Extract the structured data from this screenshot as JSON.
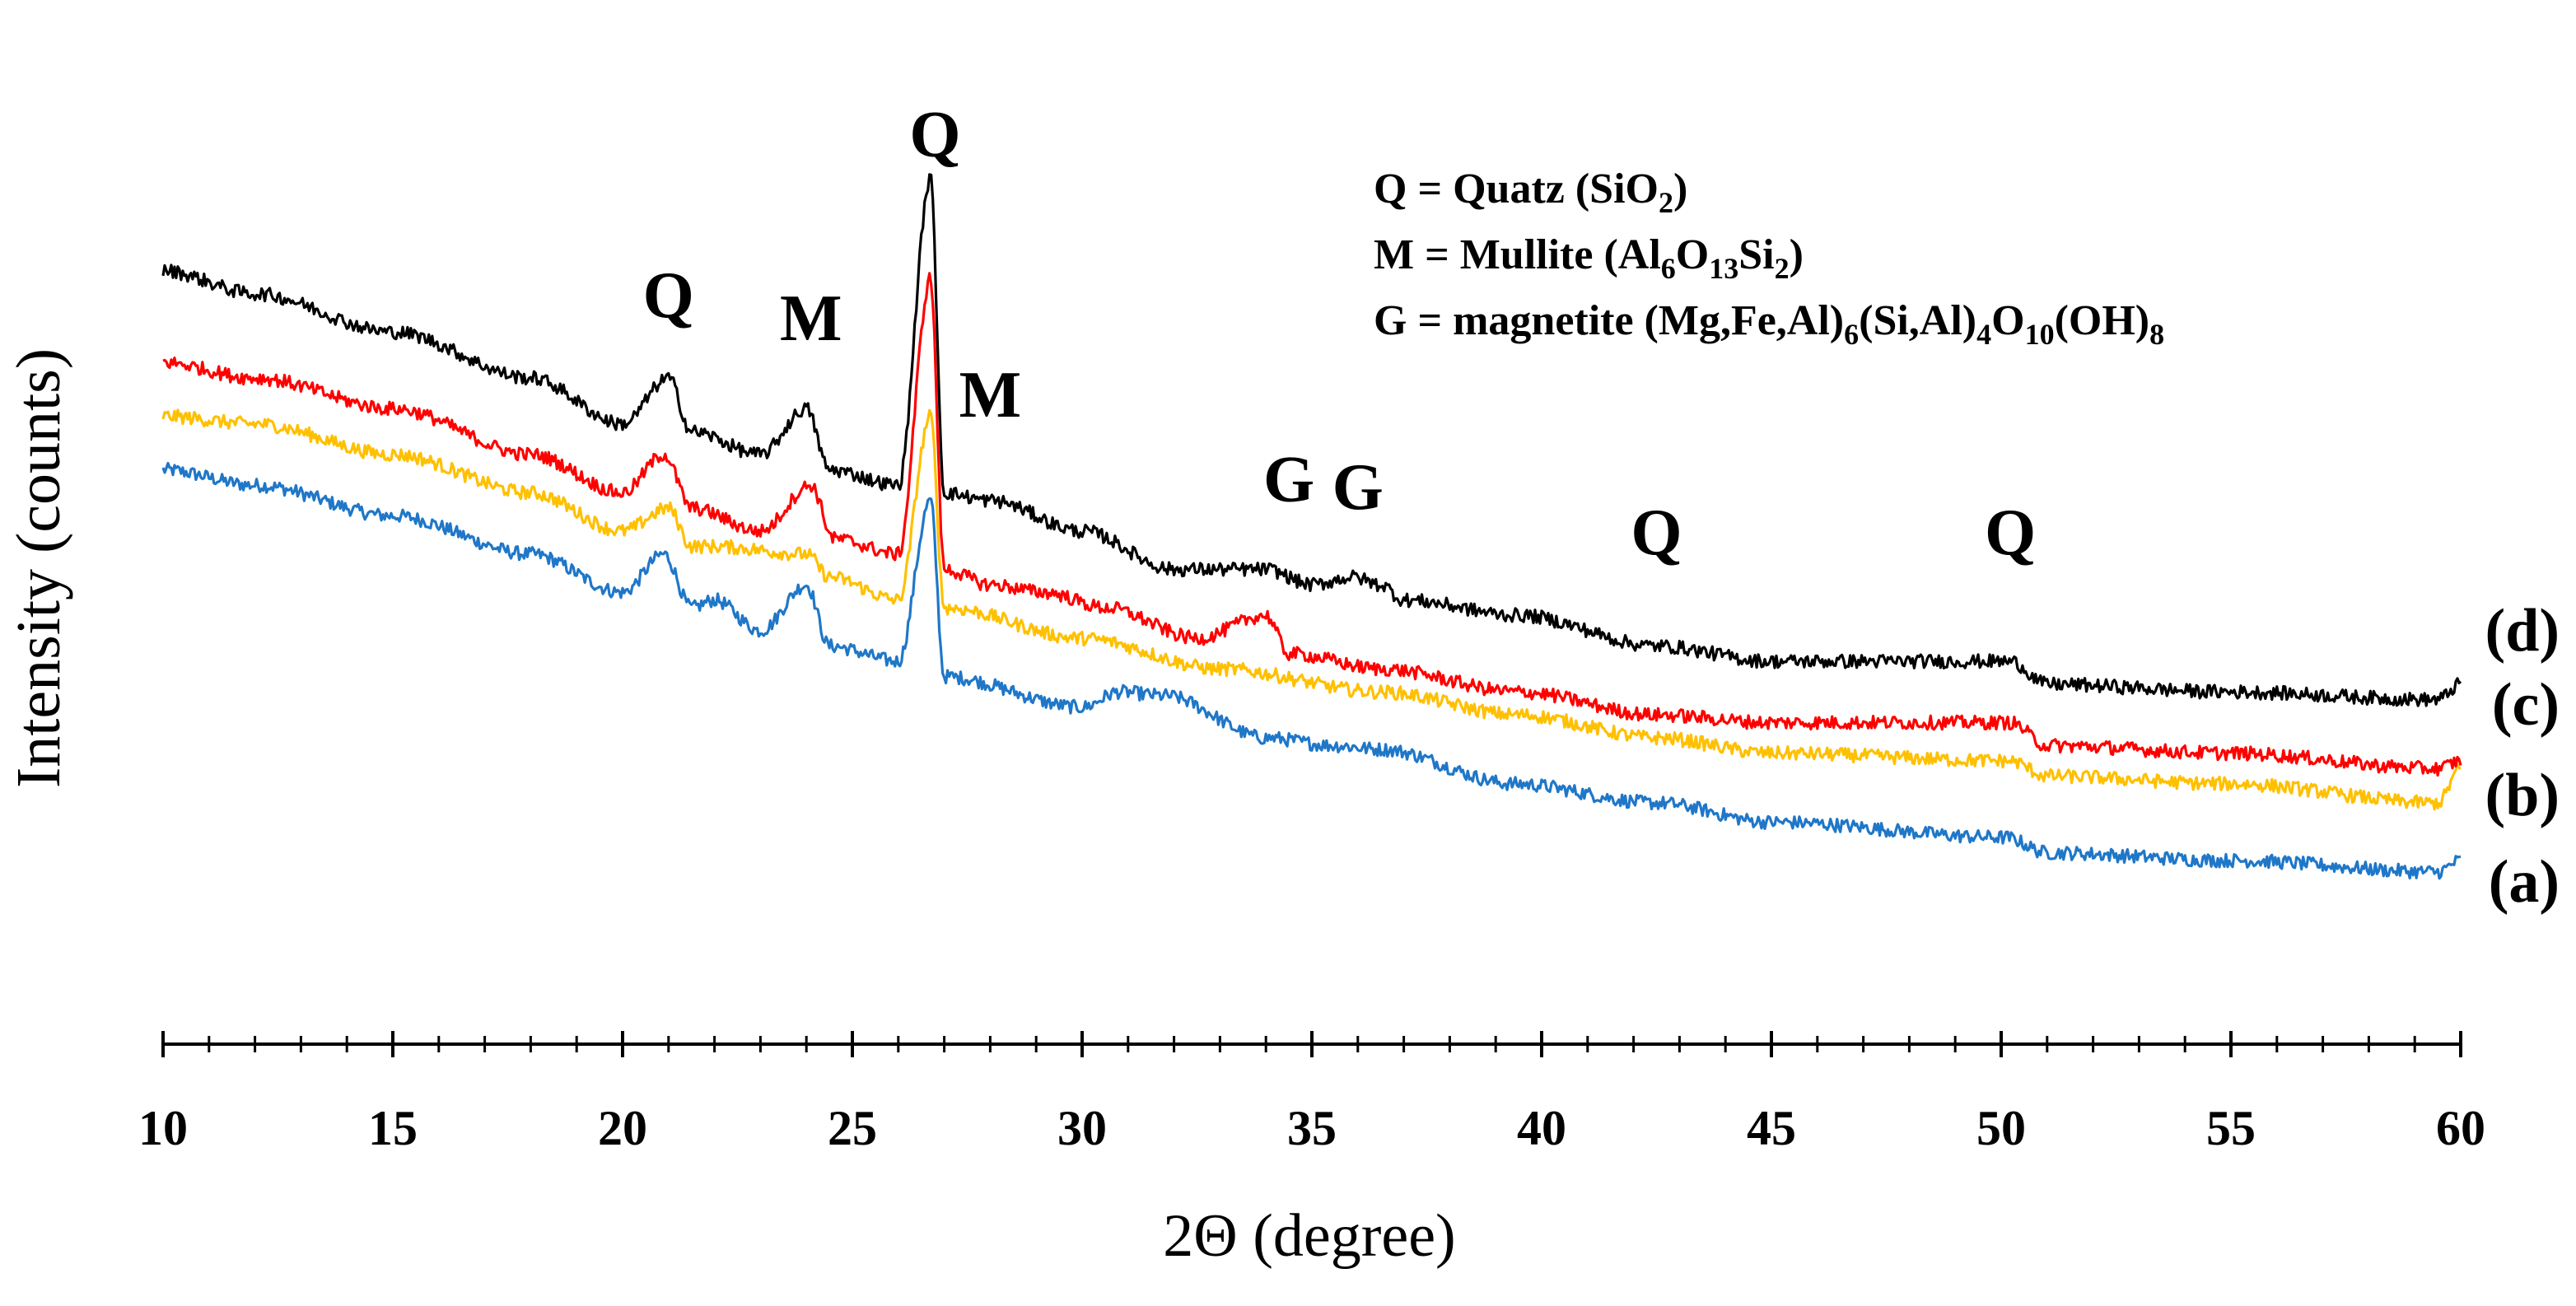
{
  "chart_data": {
    "type": "line",
    "title": "",
    "xlabel": "2Θ (degree)",
    "ylabel": "Intensity  (counts)",
    "xlim": [
      10,
      60
    ],
    "ylim": [
      0,
      1
    ],
    "x_ticks": [
      10,
      15,
      20,
      25,
      30,
      35,
      40,
      45,
      50,
      55,
      60
    ],
    "x_tick_labels": [
      "10",
      "15",
      "20",
      "25",
      "30",
      "35",
      "40",
      "45",
      "50",
      "55",
      "60"
    ],
    "grid": false,
    "y_axis_shown": false,
    "series": [
      {
        "name": "(a)",
        "color": "#1f77c8",
        "points": [
          [
            10,
            0.58
          ],
          [
            12,
            0.56
          ],
          [
            15,
            0.52
          ],
          [
            18,
            0.47
          ],
          [
            20,
            0.42
          ],
          [
            20.9,
            0.47
          ],
          [
            21.5,
            0.4
          ],
          [
            22,
            0.41
          ],
          [
            23,
            0.37
          ],
          [
            24,
            0.43
          ],
          [
            24.5,
            0.35
          ],
          [
            26,
            0.33
          ],
          [
            26.7,
            0.54
          ],
          [
            27,
            0.31
          ],
          [
            30,
            0.27
          ],
          [
            30.8,
            0.29
          ],
          [
            31.8,
            0.285
          ],
          [
            34,
            0.23
          ],
          [
            35.5,
            0.22
          ],
          [
            36.5,
            0.215
          ],
          [
            39.4,
            0.17
          ],
          [
            42.5,
            0.145
          ],
          [
            45,
            0.12
          ],
          [
            50.1,
            0.1
          ],
          [
            51,
            0.08
          ],
          [
            55,
            0.07
          ],
          [
            59.5,
            0.055
          ],
          [
            60,
            0.07
          ]
        ]
      },
      {
        "name": "(b)",
        "color": "#ffc000",
        "points": [
          [
            10,
            0.65
          ],
          [
            12,
            0.64
          ],
          [
            15,
            0.6
          ],
          [
            18,
            0.55
          ],
          [
            20,
            0.5
          ],
          [
            21,
            0.53
          ],
          [
            21.5,
            0.48
          ],
          [
            22,
            0.48
          ],
          [
            24,
            0.47
          ],
          [
            24.5,
            0.44
          ],
          [
            26,
            0.41
          ],
          [
            26.7,
            0.65
          ],
          [
            27,
            0.4
          ],
          [
            30,
            0.36
          ],
          [
            33,
            0.32
          ],
          [
            36.5,
            0.29
          ],
          [
            39.5,
            0.26
          ],
          [
            42.5,
            0.23
          ],
          [
            45,
            0.21
          ],
          [
            50.2,
            0.2
          ],
          [
            51,
            0.18
          ],
          [
            55,
            0.17
          ],
          [
            59.5,
            0.145
          ],
          [
            60,
            0.19
          ]
        ]
      },
      {
        "name": "(c)",
        "color": "#ff0000",
        "points": [
          [
            10,
            0.72
          ],
          [
            12,
            0.7
          ],
          [
            15,
            0.66
          ],
          [
            18,
            0.6
          ],
          [
            20,
            0.55
          ],
          [
            20.9,
            0.6
          ],
          [
            21.5,
            0.53
          ],
          [
            23,
            0.5
          ],
          [
            24.1,
            0.56
          ],
          [
            24.6,
            0.49
          ],
          [
            26,
            0.47
          ],
          [
            26.7,
            0.83
          ],
          [
            27,
            0.45
          ],
          [
            28,
            0.43
          ],
          [
            29.2,
            0.42
          ],
          [
            30.5,
            0.4
          ],
          [
            32.5,
            0.36
          ],
          [
            34,
            0.39
          ],
          [
            34.5,
            0.34
          ],
          [
            36.5,
            0.32
          ],
          [
            39.5,
            0.29
          ],
          [
            42.5,
            0.26
          ],
          [
            45,
            0.25
          ],
          [
            50.2,
            0.25
          ],
          [
            51,
            0.22
          ],
          [
            55,
            0.21
          ],
          [
            59.5,
            0.19
          ],
          [
            60,
            0.2
          ]
        ]
      },
      {
        "name": "(d)",
        "color": "#000000",
        "points": [
          [
            10,
            0.84
          ],
          [
            12,
            0.81
          ],
          [
            15,
            0.76
          ],
          [
            18,
            0.7
          ],
          [
            20,
            0.64
          ],
          [
            21,
            0.7
          ],
          [
            21.5,
            0.63
          ],
          [
            23,
            0.6
          ],
          [
            24,
            0.66
          ],
          [
            24.5,
            0.58
          ],
          [
            26,
            0.56
          ],
          [
            26.7,
            0.96
          ],
          [
            27,
            0.55
          ],
          [
            28,
            0.54
          ],
          [
            30,
            0.5
          ],
          [
            32,
            0.45
          ],
          [
            34,
            0.45
          ],
          [
            35,
            0.43
          ],
          [
            35.9,
            0.44
          ],
          [
            36.5,
            0.43
          ],
          [
            37,
            0.41
          ],
          [
            39.5,
            0.39
          ],
          [
            42.5,
            0.35
          ],
          [
            45,
            0.33
          ],
          [
            50.2,
            0.33
          ],
          [
            51,
            0.3
          ],
          [
            55,
            0.29
          ],
          [
            59.5,
            0.28
          ],
          [
            60,
            0.3
          ]
        ]
      }
    ],
    "series_labels": [
      "(a)",
      "(b)",
      "(c)",
      "(d)"
    ],
    "peak_annotations": [
      {
        "text": "Q",
        "x": 26.8,
        "value": 1.0
      },
      {
        "text": "Q",
        "x": 21.0,
        "value": 0.79
      },
      {
        "text": "M",
        "x": 24.1,
        "value": 0.76
      },
      {
        "text": "M",
        "x": 28.0,
        "value": 0.66
      },
      {
        "text": "G",
        "x": 34.5,
        "value": 0.55
      },
      {
        "text": "G",
        "x": 36.0,
        "value": 0.54
      },
      {
        "text": "Q",
        "x": 42.5,
        "value": 0.48
      },
      {
        "text": "Q",
        "x": 50.2,
        "value": 0.48
      }
    ],
    "legend": {
      "placement": "top-right",
      "entries": [
        {
          "key": "Q",
          "text": " = Quatz (SiO",
          "sub": "2",
          "tail": ")"
        },
        {
          "key": "M",
          "text": " = Mullite  (Al",
          "sub": "6",
          "mid": "O",
          "sub2": "13",
          "mid2": "Si",
          "sub3": "2",
          "tail": ")"
        },
        {
          "key": "G",
          "text": " = magnetite (Mg,Fe,Al)",
          "sub": "6",
          "mid": "(Si,Al)",
          "sub2": "4",
          "mid2": "O",
          "sub3": "10",
          "tail": "(OH)",
          "sub4": "8"
        }
      ]
    },
    "legend_plain": [
      "Q = Quatz (SiO2)",
      "M = Mullite (Al6O13Si2)",
      "G = magnetite (Mg,Fe,Al)6(Si,Al)4O10(OH)8"
    ]
  }
}
